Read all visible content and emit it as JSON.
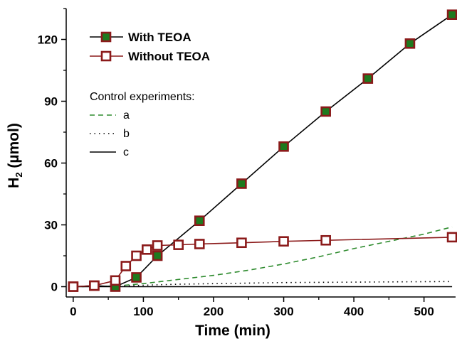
{
  "chart_data": {
    "type": "line",
    "xlabel": "Time (min)",
    "ylabel_main": "H",
    "ylabel_sub": "2",
    "ylabel_rest": " (µmol)",
    "xlim": [
      -10,
      545
    ],
    "ylim": [
      -5,
      135
    ],
    "xticks": [
      0,
      100,
      200,
      300,
      400,
      500
    ],
    "yticks": [
      0,
      30,
      60,
      90,
      120
    ],
    "x_minor_step": 50,
    "y_minor_step": 15,
    "legend_placement": "top-left",
    "grid": false,
    "series": [
      {
        "name": "With TEOA",
        "line_color": "#000000",
        "marker_fill": "#1e7a1e",
        "marker_edge": "#8b1a1a",
        "line_style": "solid",
        "x": [
          0,
          30,
          60,
          90,
          120,
          180,
          240,
          300,
          360,
          420,
          480,
          540
        ],
        "y": [
          0,
          0.5,
          0,
          4.5,
          15,
          32,
          50,
          68,
          85,
          101,
          118,
          132
        ]
      },
      {
        "name": "Without TEOA",
        "line_color": "#8b1a1a",
        "marker_fill": "#ffffff",
        "marker_edge": "#8b1a1a",
        "line_style": "solid",
        "x": [
          0,
          30,
          60,
          75,
          90,
          105,
          120,
          150,
          180,
          240,
          300,
          360,
          540
        ],
        "y": [
          0,
          0.5,
          3,
          10,
          15,
          18,
          20,
          20.3,
          20.7,
          21.3,
          22,
          22.5,
          24
        ]
      }
    ],
    "control_title": "Control experiments:",
    "controls": [
      {
        "name": "a",
        "color": "#2e8b2e",
        "style": "dashed",
        "x": [
          0,
          60,
          100,
          150,
          200,
          250,
          300,
          350,
          400,
          450,
          500,
          540
        ],
        "y": [
          0,
          0.3,
          1.5,
          3.5,
          5.5,
          8,
          11,
          14.5,
          18.5,
          22,
          25.5,
          29
        ]
      },
      {
        "name": "b",
        "color": "#000000",
        "style": "dotted",
        "x": [
          0,
          60,
          150,
          300,
          540
        ],
        "y": [
          0,
          0.3,
          1.2,
          2,
          2.5
        ]
      },
      {
        "name": "c",
        "color": "#000000",
        "style": "solid",
        "x": [
          0,
          540
        ],
        "y": [
          0,
          0
        ]
      }
    ]
  }
}
